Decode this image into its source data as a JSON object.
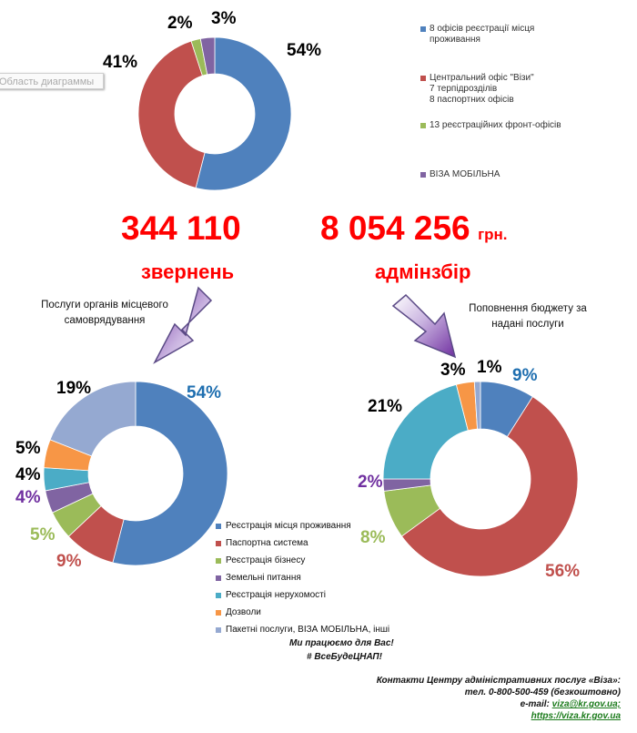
{
  "chart_area_tooltip": "Область диаграммы",
  "totals": {
    "requests_value": "344 110",
    "requests_label": "звернень",
    "fee_value": "8 054 256",
    "fee_unit": "грн.",
    "fee_label": "адмінзбір"
  },
  "notes": {
    "local_services_line1": "Послуги органів місцевого",
    "local_services_line2": "самоврядування",
    "budget_line1": "Поповнення  бюджету за",
    "budget_line2": "надані послуги"
  },
  "footer": {
    "slogan1": "Ми працюємо для Вас!",
    "slogan2": "# ВсеБудеЦНАП!",
    "contacts_title": "Контакти Центру адміністративних послуг «Віза»:",
    "phone_line": "тел. 0-800-500-459 (безкоштовно)",
    "email_label": "e-mail:",
    "email_value": "viza@kr.gov.ua;",
    "website": "https://viza.kr.gov.ua"
  },
  "chart_data": [
    {
      "type": "pie",
      "style": "donut",
      "series": [
        {
          "labels": [
            "8 офісів  реєстрації  місця проживання",
            "Центральний офіс \"Візи\" 7 терпідрозділів 8 паспортних офісів",
            "13 реєстраційних фронт-офісів",
            "ВІЗА МОБІЛЬНА"
          ],
          "legend_lines": [
            [
              "8 офісів  реєстрації  місця",
              "проживання"
            ],
            [
              "Центральний офіс \"Візи\"",
              "7 терпідрозділів",
              "8 паспортних офісів"
            ],
            [
              "13 реєстраційних фронт-офісів"
            ],
            [
              "ВІЗА МОБІЛЬНА"
            ]
          ],
          "values": [
            54,
            41,
            2,
            3
          ],
          "data_labels": [
            "54%",
            "41%",
            "2%",
            "3%"
          ],
          "colors": [
            "#4f81bd",
            "#c0504d",
            "#9bbb59",
            "#8064a2"
          ]
        }
      ],
      "legend_position": "right"
    },
    {
      "type": "pie",
      "style": "donut",
      "series": [
        {
          "labels": [
            "Реєстрація  місця  проживання",
            "Паспортна  система",
            "Реєстрація  бізнесу",
            "Земельні  питання",
            "Реєстрація  нерухомості",
            "Дозволи",
            "Пакетні  послуги,  ВІЗА МОБІЛЬНА,  інші"
          ],
          "values": [
            54,
            9,
            5,
            4,
            4,
            5,
            19
          ],
          "data_labels": [
            "54%",
            "9%",
            "5%",
            "4%",
            "4%",
            "5%",
            "19%"
          ],
          "colors": [
            "#4f81bd",
            "#c0504d",
            "#9bbb59",
            "#8064a2",
            "#4bacc6",
            "#f79646",
            "#95a9d1"
          ]
        }
      ],
      "legend_position": "bottom-center"
    },
    {
      "type": "pie",
      "style": "donut",
      "series": [
        {
          "values": [
            9,
            56,
            8,
            2,
            21,
            3,
            1
          ],
          "data_labels": [
            "9%",
            "56%",
            "8%",
            "2%",
            "21%",
            "3%",
            "1%"
          ],
          "colors": [
            "#4f81bd",
            "#c0504d",
            "#9bbb59",
            "#8064a2",
            "#4bacc6",
            "#f79646",
            "#95a9d1"
          ]
        }
      ]
    }
  ]
}
